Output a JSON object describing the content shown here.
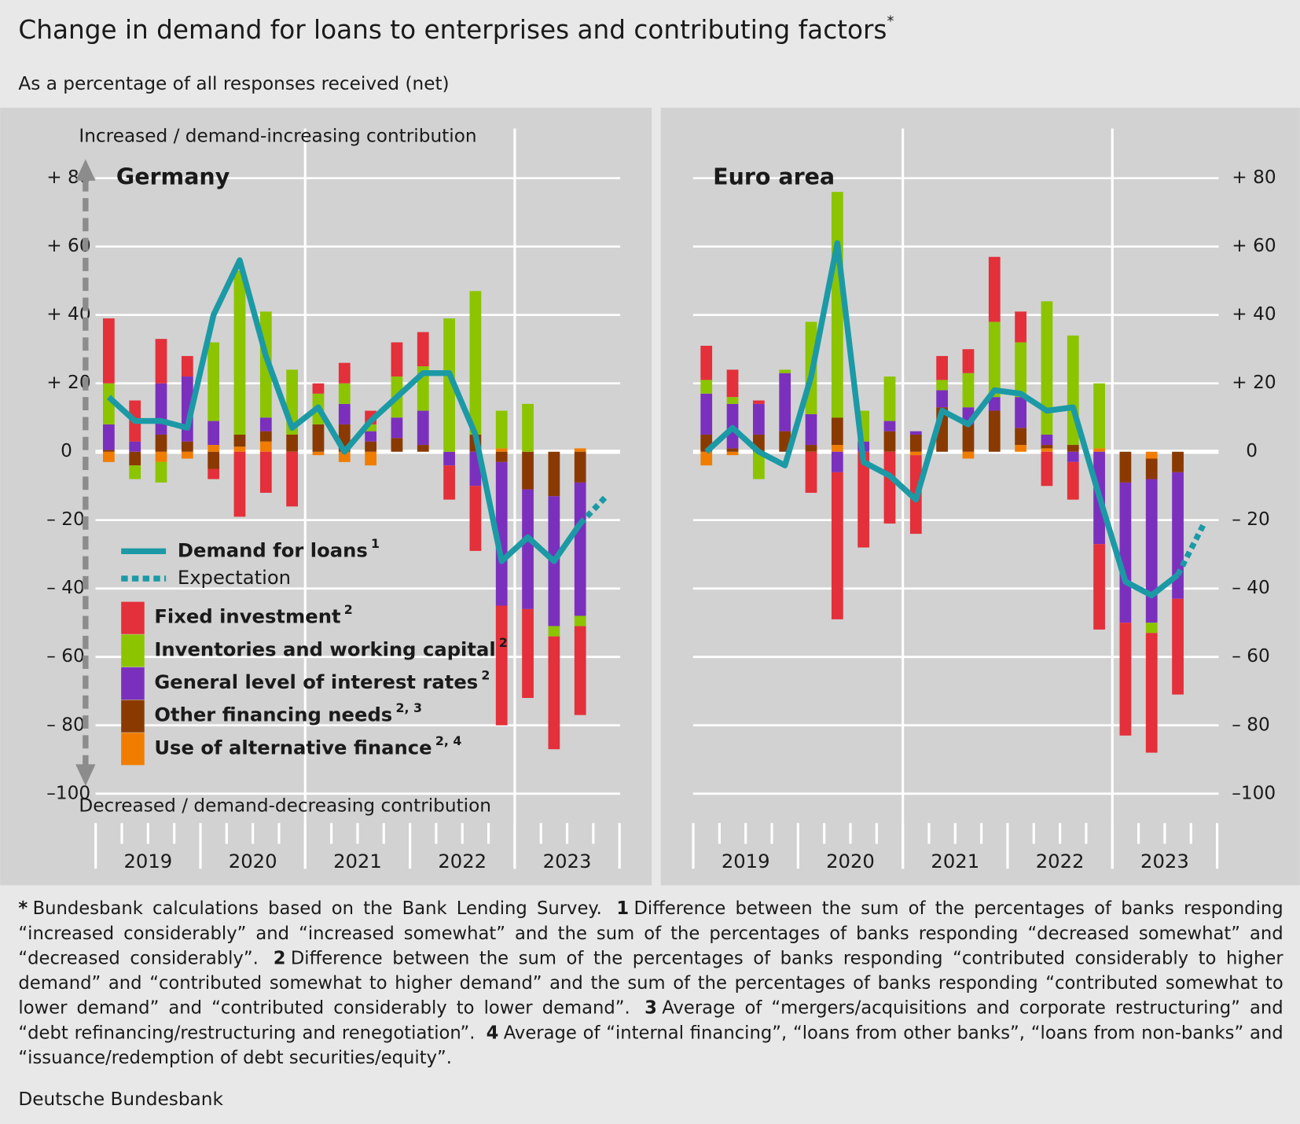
{
  "header": {
    "title": "Change in demand for loans to enterprises and contributing factors",
    "title_note": "*",
    "subtitle": "As a percentage of all responses received (net)"
  },
  "chart_data": [
    {
      "type": "bar",
      "title": "Germany",
      "top_label": "Increased / demand-increasing contribution",
      "bottom_label": "Decreased / demand-decreasing contribution",
      "categories": [
        null,
        null,
        null,
        null,
        null,
        null,
        null,
        null,
        null,
        null,
        null,
        null,
        null,
        null,
        null,
        null,
        null,
        null,
        null,
        null
      ],
      "years": [
        "2019",
        "2020",
        "2021",
        "2022",
        "2023"
      ],
      "ylim": [
        -100,
        80
      ],
      "yticks": [
        {
          "value": -100,
          "label": "–100"
        },
        {
          "value": -80,
          "label": "– 80"
        },
        {
          "value": -60,
          "label": "– 60"
        },
        {
          "value": -40,
          "label": "– 40"
        },
        {
          "value": -20,
          "label": "– 20"
        },
        0,
        {
          "value": 20,
          "label": "+ 20"
        },
        {
          "value": 40,
          "label": "+ 40"
        },
        {
          "value": 60,
          "label": "+ 60"
        },
        {
          "value": 80,
          "label": "+ 80"
        }
      ],
      "tick_side": "left",
      "legend": true,
      "series": [
        {
          "name": "Demand for loans",
          "note": "1",
          "type": "line",
          "color": "#1b9aa6",
          "values": [
            16,
            9,
            9,
            7,
            40,
            56,
            28,
            7,
            13,
            0,
            9,
            16,
            23,
            23,
            5,
            -32,
            -25,
            -32,
            -21,
            null
          ]
        },
        {
          "name": "Expectation",
          "type": "line",
          "dashed": true,
          "color": "#1b9aa6",
          "values": [
            null,
            null,
            null,
            null,
            null,
            null,
            null,
            null,
            null,
            null,
            null,
            null,
            null,
            null,
            null,
            null,
            null,
            null,
            -21,
            -13
          ]
        },
        {
          "name": "Fixed investment",
          "note": "2",
          "type": "bar",
          "color": "#e3303a",
          "values": [
            19,
            12,
            13,
            6,
            -3,
            -19,
            -12,
            -16,
            3,
            6,
            4,
            10,
            10,
            -10,
            -19,
            -35,
            -26,
            -33,
            -26,
            null
          ]
        },
        {
          "name": "Inventories and working capital",
          "note": "2",
          "type": "bar",
          "color": "#8cc400",
          "values": [
            12,
            -4,
            -6,
            0,
            23,
            48,
            31,
            19,
            9,
            6,
            2,
            12,
            13,
            39,
            42,
            11,
            14,
            -3,
            -3,
            null
          ]
        },
        {
          "name": "General level of interest rates",
          "note": "2",
          "type": "bar",
          "color": "#7b30bd",
          "values": [
            7.5,
            3,
            15,
            19,
            7,
            0,
            4,
            0,
            0,
            6,
            3,
            6,
            10,
            -4,
            -10,
            -42,
            -35,
            -38,
            -39,
            null
          ]
        },
        {
          "name": "Other financing needs",
          "note": "2, 3",
          "type": "bar",
          "color": "#8a3a00",
          "values": [
            0.5,
            -4,
            5,
            3,
            -5,
            3.5,
            3,
            5,
            8,
            8,
            3,
            4,
            2,
            0,
            5,
            -3,
            -11,
            -13,
            -9,
            null
          ]
        },
        {
          "name": "Use of alternative finance",
          "note": "2, 4",
          "type": "bar",
          "color": "#f07d00",
          "values": [
            -3,
            0,
            -3,
            -2,
            2,
            1.5,
            3,
            0,
            -1,
            -3,
            -4,
            0,
            0,
            0,
            0,
            1,
            0,
            0,
            1,
            null
          ]
        }
      ]
    },
    {
      "type": "bar",
      "title": "Euro area",
      "categories": [
        null,
        null,
        null,
        null,
        null,
        null,
        null,
        null,
        null,
        null,
        null,
        null,
        null,
        null,
        null,
        null,
        null,
        null,
        null,
        null
      ],
      "years": [
        "2019",
        "2020",
        "2021",
        "2022",
        "2023"
      ],
      "ylim": [
        -100,
        80
      ],
      "yticks": [
        {
          "value": -100,
          "label": "–100"
        },
        {
          "value": -80,
          "label": "– 80"
        },
        {
          "value": -60,
          "label": "– 60"
        },
        {
          "value": -40,
          "label": "– 40"
        },
        {
          "value": -20,
          "label": "– 20"
        },
        0,
        {
          "value": 20,
          "label": "+ 20"
        },
        {
          "value": 40,
          "label": "+ 40"
        },
        {
          "value": 60,
          "label": "+ 60"
        },
        {
          "value": 80,
          "label": "+ 80"
        }
      ],
      "tick_side": "right",
      "legend": false,
      "series": [
        {
          "type": "line",
          "color": "#1b9aa6",
          "values": [
            0,
            7,
            0,
            -4,
            22,
            61,
            -3,
            -7,
            -14,
            12,
            8,
            18,
            17,
            12,
            13,
            -13,
            -38,
            -42,
            -36,
            null
          ]
        },
        {
          "type": "line",
          "dashed": true,
          "color": "#1b9aa6",
          "values": [
            null,
            null,
            null,
            null,
            null,
            null,
            null,
            null,
            null,
            null,
            null,
            null,
            null,
            null,
            null,
            null,
            null,
            null,
            -36,
            -21
          ]
        },
        {
          "type": "bar",
          "color": "#e3303a",
          "values": [
            10,
            8,
            1,
            0,
            -12,
            -43,
            -28,
            -21,
            -23,
            7,
            7,
            19,
            9,
            -10,
            -11,
            -25,
            -33,
            -35,
            -28,
            null
          ]
        },
        {
          "type": "bar",
          "color": "#8cc400",
          "values": [
            4,
            2,
            -8,
            1,
            27,
            66,
            9,
            13,
            0,
            3,
            10,
            22,
            16,
            39,
            32,
            19,
            0,
            -3,
            0,
            null
          ]
        },
        {
          "type": "bar",
          "color": "#7b30bd",
          "values": [
            12,
            13,
            9,
            17,
            9,
            -6,
            3,
            3,
            1,
            5,
            5,
            4,
            9,
            3,
            -3,
            -27,
            -41,
            -42,
            -37,
            null
          ]
        },
        {
          "type": "bar",
          "color": "#8a3a00",
          "values": [
            5,
            1,
            5,
            6,
            2,
            8,
            0,
            6,
            5,
            13,
            8,
            12,
            5,
            1,
            2,
            0,
            -9,
            -6,
            -6,
            null
          ]
        },
        {
          "type": "bar",
          "color": "#f07d00",
          "values": [
            -4,
            -1,
            0,
            0,
            0,
            2,
            0,
            0,
            -1,
            0,
            -2,
            0,
            2,
            1,
            0,
            1,
            0,
            -2,
            0,
            null
          ]
        }
      ]
    }
  ],
  "footnotes": [
    {
      "mark": "*",
      "text": "Bundesbank calculations based on the Bank Lending Survey."
    },
    {
      "mark": "1",
      "text": "Difference between the sum of the percentages of banks responding “increased considerably” and “increased somewhat” and the sum of the percentages of banks responding “decreased somewhat” and “decreased considerably”."
    },
    {
      "mark": "2",
      "text": "Difference between the sum of the percentages of banks responding “contributed considerably to higher demand” and “contributed somewhat to higher demand” and the sum of the percentages of banks responding “contributed somewhat to lower demand” and “contributed considerably to lower demand”."
    },
    {
      "mark": "3",
      "text": "Average of “mergers/acquisitions and corporate restructuring” and “debt refinancing/restructuring and renegotiation”."
    },
    {
      "mark": "4",
      "text": "Average of “internal financing”, “loans from other banks”, “loans from non-banks” and “issuance/redemption of debt securities/equity”."
    }
  ],
  "source": "Deutsche Bundesbank"
}
